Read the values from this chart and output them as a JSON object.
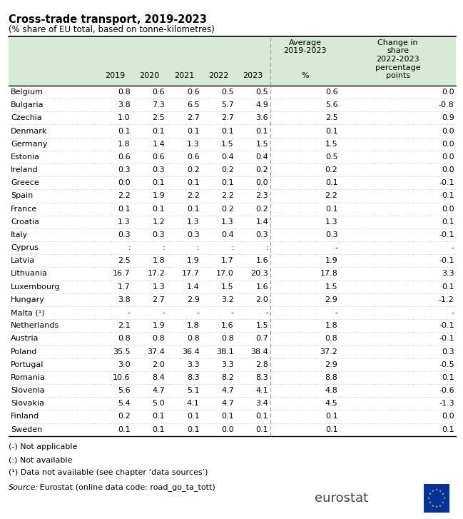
{
  "title": "Cross-trade transport, 2019-2023",
  "subtitle": "(% share of EU total, based on tonne-kilometres)",
  "countries": [
    "Belgium",
    "Bulgaria",
    "Czechia",
    "Denmark",
    "Germany",
    "Estonia",
    "Ireland",
    "Greece",
    "Spain",
    "France",
    "Croatia",
    "Italy",
    "Cyprus",
    "Latvia",
    "Lithuania",
    "Luxembourg",
    "Hungary",
    "Malta (¹)",
    "Netherlands",
    "Austria",
    "Poland",
    "Portugal",
    "Romania",
    "Slovenia",
    "Slovakia",
    "Finland",
    "Sweden"
  ],
  "col_headers": [
    "",
    "2019",
    "2020",
    "2021",
    "2022",
    "2023",
    "Average\n2019-2023\n\n%",
    "Change in\nshare\n2022-2023\npercentage\npoints"
  ],
  "data": [
    [
      "Belgium",
      "0.8",
      "0.6",
      "0.6",
      "0.5",
      "0.5",
      "0.6",
      "0.0"
    ],
    [
      "Bulgaria",
      "3.8",
      "7.3",
      "6.5",
      "5.7",
      "4.9",
      "5.6",
      "-0.8"
    ],
    [
      "Czechia",
      "1.0",
      "2.5",
      "2.7",
      "2.7",
      "3.6",
      "2.5",
      "0.9"
    ],
    [
      "Denmark",
      "0.1",
      "0.1",
      "0.1",
      "0.1",
      "0.1",
      "0.1",
      "0.0"
    ],
    [
      "Germany",
      "1.8",
      "1.4",
      "1.3",
      "1.5",
      "1.5",
      "1.5",
      "0.0"
    ],
    [
      "Estonia",
      "0.6",
      "0.6",
      "0.6",
      "0.4",
      "0.4",
      "0.5",
      "0.0"
    ],
    [
      "Ireland",
      "0.3",
      "0.3",
      "0.2",
      "0.2",
      "0.2",
      "0.2",
      "0.0"
    ],
    [
      "Greece",
      "0.0",
      "0.1",
      "0.1",
      "0.1",
      "0.0",
      "0.1",
      "-0.1"
    ],
    [
      "Spain",
      "2.2",
      "1.9",
      "2.2",
      "2.2",
      "2.3",
      "2.2",
      "0.1"
    ],
    [
      "France",
      "0.1",
      "0.1",
      "0.1",
      "0.2",
      "0.2",
      "0.1",
      "0.0"
    ],
    [
      "Croatia",
      "1.3",
      "1.2",
      "1.3",
      "1.3",
      "1.4",
      "1.3",
      "0.1"
    ],
    [
      "Italy",
      "0.3",
      "0.3",
      "0.3",
      "0.4",
      "0.3",
      "0.3",
      "-0.1"
    ],
    [
      "Cyprus",
      ":",
      ":",
      ":",
      ":",
      ":",
      "-",
      "-"
    ],
    [
      "Latvia",
      "2.5",
      "1.8",
      "1.9",
      "1.7",
      "1.6",
      "1.9",
      "-0.1"
    ],
    [
      "Lithuania",
      "16.7",
      "17.2",
      "17.7",
      "17.0",
      "20.3",
      "17.8",
      "3.3"
    ],
    [
      "Luxembourg",
      "1.7",
      "1.3",
      "1.4",
      "1.5",
      "1.6",
      "1.5",
      "0.1"
    ],
    [
      "Hungary",
      "3.8",
      "2.7",
      "2.9",
      "3.2",
      "2.0",
      "2.9",
      "-1.2"
    ],
    [
      "Malta (¹)",
      "-",
      "-",
      "-",
      "-",
      "-",
      "-",
      "-"
    ],
    [
      "Netherlands",
      "2.1",
      "1.9",
      "1.8",
      "1.6",
      "1.5",
      "1.8",
      "-0.1"
    ],
    [
      "Austria",
      "0.8",
      "0.8",
      "0.8",
      "0.8",
      "0.7",
      "0.8",
      "-0.1"
    ],
    [
      "Poland",
      "35.5",
      "37.4",
      "36.4",
      "38.1",
      "38.4",
      "37.2",
      "0.3"
    ],
    [
      "Portugal",
      "3.0",
      "2.0",
      "3.3",
      "3.3",
      "2.8",
      "2.9",
      "-0.5"
    ],
    [
      "Romania",
      "10.6",
      "8.4",
      "8.3",
      "8.2",
      "8.3",
      "8.8",
      "0.1"
    ],
    [
      "Slovenia",
      "5.6",
      "4.7",
      "5.1",
      "4.7",
      "4.1",
      "4.8",
      "-0.6"
    ],
    [
      "Slovakia",
      "5.4",
      "5.0",
      "4.1",
      "4.7",
      "3.4",
      "4.5",
      "-1.3"
    ],
    [
      "Finland",
      "0.2",
      "0.1",
      "0.1",
      "0.1",
      "0.1",
      "0.1",
      "0.0"
    ],
    [
      "Sweden",
      "0.1",
      "0.1",
      "0.1",
      "0.0",
      "0.1",
      "0.1",
      "0.1"
    ]
  ],
  "header_bg": "#d6ead6",
  "white_bg": "#ffffff",
  "text_color": "#000000",
  "border_color": "#000000",
  "dot_line_color": "#bbbbbb",
  "sep_line_color": "#999999",
  "note1": "(-) Not applicable",
  "note2": "(:) Not available",
  "note3": "(¹) Data not available (see chapter ‘data sources’)",
  "source_label": "Source:",
  "source_text": " Eurostat (online data code: road_go_ta_tott)",
  "eurostat_color": "#404040",
  "eu_blue": "#003399",
  "eu_yellow": "#FFCC00"
}
